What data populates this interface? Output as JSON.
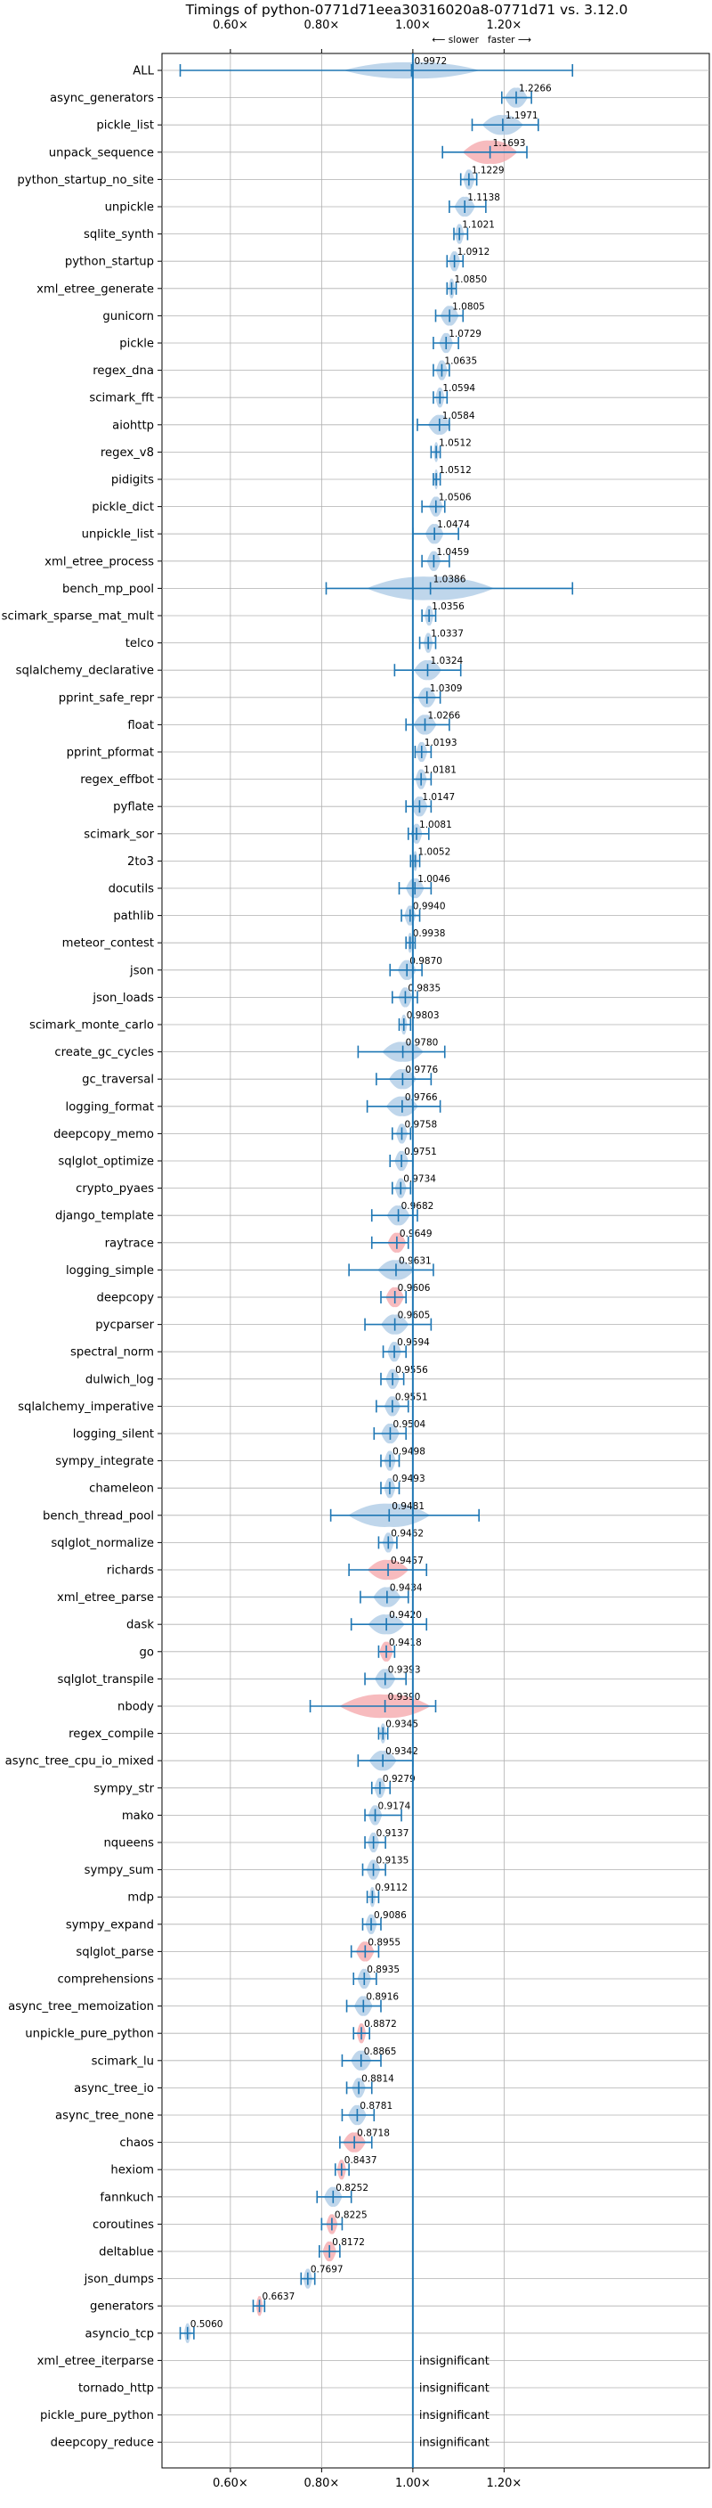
{
  "chart_data": {
    "type": "violin",
    "title": "Timings of python-0771d71eea30316020a8-0771d71 vs. 3.12.0",
    "xlim": [
      0.45,
      1.65
    ],
    "x_ticks": [
      {
        "value": 0.6,
        "label": "0.60×"
      },
      {
        "value": 0.8,
        "label": "0.80×"
      },
      {
        "value": 1.0,
        "label": "1.00×"
      },
      {
        "value": 1.2,
        "label": "1.20×"
      }
    ],
    "direction_labels": {
      "slower": "⟵ slower",
      "faster": "faster ⟶"
    },
    "grid": true,
    "colors": {
      "normal": "#a9c8e4",
      "warn": "#f4a4a8",
      "line": "#1f77b4"
    },
    "insignificant_label": "insignificant",
    "benchmarks": [
      {
        "name": "ALL",
        "value": 0.9972,
        "label": "0.9972",
        "lo": 0.49,
        "hi": 1.35,
        "kind": "all",
        "width": 0.3
      },
      {
        "name": "async_generators",
        "value": 1.2266,
        "label": "1.2266",
        "lo": 1.195,
        "hi": 1.26,
        "kind": "normal",
        "width": 0.05
      },
      {
        "name": "pickle_list",
        "value": 1.1971,
        "label": "1.1971",
        "lo": 1.13,
        "hi": 1.275,
        "kind": "normal",
        "width": 0.09
      },
      {
        "name": "unpack_sequence",
        "value": 1.1693,
        "label": "1.1693",
        "lo": 1.065,
        "hi": 1.25,
        "kind": "warn",
        "width": 0.12
      },
      {
        "name": "python_startup_no_site",
        "value": 1.1229,
        "label": "1.1229",
        "lo": 1.105,
        "hi": 1.14,
        "kind": "normal",
        "width": 0.025
      },
      {
        "name": "unpickle",
        "value": 1.1138,
        "label": "1.1138",
        "lo": 1.08,
        "hi": 1.16,
        "kind": "normal",
        "width": 0.045
      },
      {
        "name": "sqlite_synth",
        "value": 1.1021,
        "label": "1.1021",
        "lo": 1.09,
        "hi": 1.12,
        "kind": "normal",
        "width": 0.02
      },
      {
        "name": "python_startup",
        "value": 1.0912,
        "label": "1.0912",
        "lo": 1.075,
        "hi": 1.11,
        "kind": "normal",
        "width": 0.025
      },
      {
        "name": "xml_etree_generate",
        "value": 1.085,
        "label": "1.0850",
        "lo": 1.075,
        "hi": 1.095,
        "kind": "normal",
        "width": 0.015
      },
      {
        "name": "gunicorn",
        "value": 1.0805,
        "label": "1.0805",
        "lo": 1.05,
        "hi": 1.11,
        "kind": "normal",
        "width": 0.04
      },
      {
        "name": "pickle",
        "value": 1.0729,
        "label": "1.0729",
        "lo": 1.045,
        "hi": 1.1,
        "kind": "normal",
        "width": 0.03
      },
      {
        "name": "regex_dna",
        "value": 1.0635,
        "label": "1.0635",
        "lo": 1.045,
        "hi": 1.08,
        "kind": "normal",
        "width": 0.025
      },
      {
        "name": "scimark_fft",
        "value": 1.0594,
        "label": "1.0594",
        "lo": 1.045,
        "hi": 1.075,
        "kind": "normal",
        "width": 0.02
      },
      {
        "name": "aiohttp",
        "value": 1.0584,
        "label": "1.0584",
        "lo": 1.01,
        "hi": 1.08,
        "kind": "normal",
        "width": 0.05
      },
      {
        "name": "regex_v8",
        "value": 1.0512,
        "label": "1.0512",
        "lo": 1.04,
        "hi": 1.06,
        "kind": "normal",
        "width": 0.012
      },
      {
        "name": "pidigits",
        "value": 1.0512,
        "label": "1.0512",
        "lo": 1.045,
        "hi": 1.06,
        "kind": "normal",
        "width": 0.01
      },
      {
        "name": "pickle_dict",
        "value": 1.0506,
        "label": "1.0506",
        "lo": 1.02,
        "hi": 1.07,
        "kind": "normal",
        "width": 0.03
      },
      {
        "name": "unpickle_list",
        "value": 1.0474,
        "label": "1.0474",
        "lo": 1.0,
        "hi": 1.1,
        "kind": "normal",
        "width": 0.04
      },
      {
        "name": "xml_etree_process",
        "value": 1.0459,
        "label": "1.0459",
        "lo": 1.02,
        "hi": 1.08,
        "kind": "normal",
        "width": 0.03
      },
      {
        "name": "bench_mp_pool",
        "value": 1.0386,
        "label": "1.0386",
        "lo": 0.81,
        "hi": 1.35,
        "kind": "normal",
        "width": 0.28
      },
      {
        "name": "scimark_sparse_mat_mult",
        "value": 1.0356,
        "label": "1.0356",
        "lo": 1.02,
        "hi": 1.05,
        "kind": "normal",
        "width": 0.02
      },
      {
        "name": "telco",
        "value": 1.0337,
        "label": "1.0337",
        "lo": 1.015,
        "hi": 1.05,
        "kind": "normal",
        "width": 0.02
      },
      {
        "name": "sqlalchemy_declarative",
        "value": 1.0324,
        "label": "1.0324",
        "lo": 0.96,
        "hi": 1.105,
        "kind": "normal",
        "width": 0.06
      },
      {
        "name": "pprint_safe_repr",
        "value": 1.0309,
        "label": "1.0309",
        "lo": 1.0,
        "hi": 1.06,
        "kind": "normal",
        "width": 0.04
      },
      {
        "name": "float",
        "value": 1.0266,
        "label": "1.0266",
        "lo": 0.985,
        "hi": 1.08,
        "kind": "normal",
        "width": 0.05
      },
      {
        "name": "pprint_pformat",
        "value": 1.0193,
        "label": "1.0193",
        "lo": 1.005,
        "hi": 1.04,
        "kind": "normal",
        "width": 0.025
      },
      {
        "name": "regex_effbot",
        "value": 1.0181,
        "label": "1.0181",
        "lo": 1.0,
        "hi": 1.04,
        "kind": "normal",
        "width": 0.025
      },
      {
        "name": "pyflate",
        "value": 1.0147,
        "label": "1.0147",
        "lo": 0.985,
        "hi": 1.04,
        "kind": "normal",
        "width": 0.035
      },
      {
        "name": "scimark_sor",
        "value": 1.0081,
        "label": "1.0081",
        "lo": 0.99,
        "hi": 1.035,
        "kind": "normal",
        "width": 0.025
      },
      {
        "name": "2to3",
        "value": 1.0052,
        "label": "1.0052",
        "lo": 0.995,
        "hi": 1.015,
        "kind": "normal",
        "width": 0.012
      },
      {
        "name": "docutils",
        "value": 1.0046,
        "label": "1.0046",
        "lo": 0.97,
        "hi": 1.04,
        "kind": "normal",
        "width": 0.04
      },
      {
        "name": "pathlib",
        "value": 0.994,
        "label": "0.9940",
        "lo": 0.975,
        "hi": 1.015,
        "kind": "normal",
        "width": 0.025
      },
      {
        "name": "meteor_contest",
        "value": 0.9938,
        "label": "0.9938",
        "lo": 0.985,
        "hi": 1.005,
        "kind": "normal",
        "width": 0.012
      },
      {
        "name": "json",
        "value": 0.987,
        "label": "0.9870",
        "lo": 0.95,
        "hi": 1.02,
        "kind": "normal",
        "width": 0.04
      },
      {
        "name": "json_loads",
        "value": 0.9835,
        "label": "0.9835",
        "lo": 0.955,
        "hi": 1.01,
        "kind": "normal",
        "width": 0.03
      },
      {
        "name": "scimark_monte_carlo",
        "value": 0.9803,
        "label": "0.9803",
        "lo": 0.97,
        "hi": 0.995,
        "kind": "normal",
        "width": 0.015
      },
      {
        "name": "create_gc_cycles",
        "value": 0.978,
        "label": "0.9780",
        "lo": 0.88,
        "hi": 1.07,
        "kind": "normal",
        "width": 0.09
      },
      {
        "name": "gc_traversal",
        "value": 0.9776,
        "label": "0.9776",
        "lo": 0.92,
        "hi": 1.04,
        "kind": "normal",
        "width": 0.06
      },
      {
        "name": "logging_format",
        "value": 0.9766,
        "label": "0.9766",
        "lo": 0.9,
        "hi": 1.06,
        "kind": "normal",
        "width": 0.07
      },
      {
        "name": "deepcopy_memo",
        "value": 0.9758,
        "label": "0.9758",
        "lo": 0.955,
        "hi": 0.995,
        "kind": "normal",
        "width": 0.025
      },
      {
        "name": "sqlglot_optimize",
        "value": 0.9751,
        "label": "0.9751",
        "lo": 0.95,
        "hi": 1.0,
        "kind": "normal",
        "width": 0.03
      },
      {
        "name": "crypto_pyaes",
        "value": 0.9734,
        "label": "0.9734",
        "lo": 0.955,
        "hi": 0.995,
        "kind": "normal",
        "width": 0.025
      },
      {
        "name": "django_template",
        "value": 0.9682,
        "label": "0.9682",
        "lo": 0.91,
        "hi": 1.01,
        "kind": "normal",
        "width": 0.05
      },
      {
        "name": "raytrace",
        "value": 0.9649,
        "label": "0.9649",
        "lo": 0.91,
        "hi": 0.99,
        "kind": "warn",
        "width": 0.04
      },
      {
        "name": "logging_simple",
        "value": 0.9631,
        "label": "0.9631",
        "lo": 0.86,
        "hi": 1.045,
        "kind": "normal",
        "width": 0.08
      },
      {
        "name": "deepcopy",
        "value": 0.9606,
        "label": "0.9606",
        "lo": 0.93,
        "hi": 0.985,
        "kind": "warn",
        "width": 0.04
      },
      {
        "name": "pycparser",
        "value": 0.9605,
        "label": "0.9605",
        "lo": 0.895,
        "hi": 1.04,
        "kind": "normal",
        "width": 0.06
      },
      {
        "name": "spectral_norm",
        "value": 0.9594,
        "label": "0.9594",
        "lo": 0.935,
        "hi": 0.985,
        "kind": "normal",
        "width": 0.03
      },
      {
        "name": "dulwich_log",
        "value": 0.9556,
        "label": "0.9556",
        "lo": 0.93,
        "hi": 0.98,
        "kind": "normal",
        "width": 0.03
      },
      {
        "name": "sqlalchemy_imperative",
        "value": 0.9551,
        "label": "0.9551",
        "lo": 0.92,
        "hi": 0.99,
        "kind": "normal",
        "width": 0.035
      },
      {
        "name": "logging_silent",
        "value": 0.9504,
        "label": "0.9504",
        "lo": 0.915,
        "hi": 0.985,
        "kind": "normal",
        "width": 0.04
      },
      {
        "name": "sympy_integrate",
        "value": 0.9498,
        "label": "0.9498",
        "lo": 0.93,
        "hi": 0.97,
        "kind": "normal",
        "width": 0.025
      },
      {
        "name": "chameleon",
        "value": 0.9493,
        "label": "0.9493",
        "lo": 0.93,
        "hi": 0.97,
        "kind": "normal",
        "width": 0.025
      },
      {
        "name": "bench_thread_pool",
        "value": 0.9481,
        "label": "0.9481",
        "lo": 0.82,
        "hi": 1.145,
        "kind": "normal",
        "width": 0.18
      },
      {
        "name": "sqlglot_normalize",
        "value": 0.9462,
        "label": "0.9462",
        "lo": 0.925,
        "hi": 0.965,
        "kind": "normal",
        "width": 0.025
      },
      {
        "name": "richards",
        "value": 0.9457,
        "label": "0.9457",
        "lo": 0.86,
        "hi": 1.03,
        "kind": "warn",
        "width": 0.09
      },
      {
        "name": "xml_etree_parse",
        "value": 0.9434,
        "label": "0.9434",
        "lo": 0.885,
        "hi": 0.99,
        "kind": "normal",
        "width": 0.06
      },
      {
        "name": "dask",
        "value": 0.942,
        "label": "0.9420",
        "lo": 0.865,
        "hi": 1.03,
        "kind": "normal",
        "width": 0.08
      },
      {
        "name": "go",
        "value": 0.9418,
        "label": "0.9418",
        "lo": 0.925,
        "hi": 0.96,
        "kind": "warn",
        "width": 0.03
      },
      {
        "name": "sqlglot_transpile",
        "value": 0.9393,
        "label": "0.9393",
        "lo": 0.895,
        "hi": 0.985,
        "kind": "normal",
        "width": 0.045
      },
      {
        "name": "nbody",
        "value": 0.939,
        "label": "0.9390",
        "lo": 0.775,
        "hi": 1.05,
        "kind": "warn",
        "width": 0.2
      },
      {
        "name": "regex_compile",
        "value": 0.9345,
        "label": "0.9345",
        "lo": 0.925,
        "hi": 0.945,
        "kind": "normal",
        "width": 0.015
      },
      {
        "name": "async_tree_cpu_io_mixed",
        "value": 0.9342,
        "label": "0.9342",
        "lo": 0.88,
        "hi": 1.0,
        "kind": "normal",
        "width": 0.06
      },
      {
        "name": "sympy_str",
        "value": 0.9279,
        "label": "0.9279",
        "lo": 0.91,
        "hi": 0.95,
        "kind": "normal",
        "width": 0.025
      },
      {
        "name": "mako",
        "value": 0.9174,
        "label": "0.9174",
        "lo": 0.895,
        "hi": 0.975,
        "kind": "normal",
        "width": 0.03
      },
      {
        "name": "nqueens",
        "value": 0.9137,
        "label": "0.9137",
        "lo": 0.895,
        "hi": 0.94,
        "kind": "normal",
        "width": 0.025
      },
      {
        "name": "sympy_sum",
        "value": 0.9135,
        "label": "0.9135",
        "lo": 0.89,
        "hi": 0.94,
        "kind": "normal",
        "width": 0.03
      },
      {
        "name": "mdp",
        "value": 0.9112,
        "label": "0.9112",
        "lo": 0.9,
        "hi": 0.925,
        "kind": "normal",
        "width": 0.015
      },
      {
        "name": "sympy_expand",
        "value": 0.9086,
        "label": "0.9086",
        "lo": 0.89,
        "hi": 0.93,
        "kind": "normal",
        "width": 0.025
      },
      {
        "name": "sqlglot_parse",
        "value": 0.8955,
        "label": "0.8955",
        "lo": 0.865,
        "hi": 0.925,
        "kind": "warn",
        "width": 0.04
      },
      {
        "name": "comprehensions",
        "value": 0.8935,
        "label": "0.8935",
        "lo": 0.87,
        "hi": 0.92,
        "kind": "normal",
        "width": 0.03
      },
      {
        "name": "async_tree_memoization",
        "value": 0.8916,
        "label": "0.8916",
        "lo": 0.855,
        "hi": 0.93,
        "kind": "normal",
        "width": 0.04
      },
      {
        "name": "unpickle_pure_python",
        "value": 0.8872,
        "label": "0.8872",
        "lo": 0.87,
        "hi": 0.905,
        "kind": "warn",
        "width": 0.02
      },
      {
        "name": "scimark_lu",
        "value": 0.8865,
        "label": "0.8865",
        "lo": 0.845,
        "hi": 0.93,
        "kind": "normal",
        "width": 0.045
      },
      {
        "name": "async_tree_io",
        "value": 0.8814,
        "label": "0.8814",
        "lo": 0.855,
        "hi": 0.91,
        "kind": "normal",
        "width": 0.03
      },
      {
        "name": "async_tree_none",
        "value": 0.8781,
        "label": "0.8781",
        "lo": 0.845,
        "hi": 0.915,
        "kind": "normal",
        "width": 0.04
      },
      {
        "name": "chaos",
        "value": 0.8718,
        "label": "0.8718",
        "lo": 0.84,
        "hi": 0.91,
        "kind": "warn",
        "width": 0.05
      },
      {
        "name": "hexiom",
        "value": 0.8437,
        "label": "0.8437",
        "lo": 0.83,
        "hi": 0.86,
        "kind": "warn",
        "width": 0.02
      },
      {
        "name": "fannkuch",
        "value": 0.8252,
        "label": "0.8252",
        "lo": 0.79,
        "hi": 0.865,
        "kind": "normal",
        "width": 0.04
      },
      {
        "name": "coroutines",
        "value": 0.8225,
        "label": "0.8225",
        "lo": 0.8,
        "hi": 0.845,
        "kind": "warn",
        "width": 0.025
      },
      {
        "name": "deltablue",
        "value": 0.8172,
        "label": "0.8172",
        "lo": 0.795,
        "hi": 0.84,
        "kind": "warn",
        "width": 0.03
      },
      {
        "name": "json_dumps",
        "value": 0.7697,
        "label": "0.7697",
        "lo": 0.755,
        "hi": 0.785,
        "kind": "normal",
        "width": 0.02
      },
      {
        "name": "generators",
        "value": 0.6637,
        "label": "0.6637",
        "lo": 0.65,
        "hi": 0.675,
        "kind": "warn",
        "width": 0.015
      },
      {
        "name": "asyncio_tcp",
        "value": 0.506,
        "label": "0.5060",
        "lo": 0.49,
        "hi": 0.52,
        "kind": "normal",
        "width": 0.015
      },
      {
        "name": "xml_etree_iterparse",
        "value": null,
        "label": "",
        "kind": "insignificant"
      },
      {
        "name": "tornado_http",
        "value": null,
        "label": "",
        "kind": "insignificant"
      },
      {
        "name": "pickle_pure_python",
        "value": null,
        "label": "",
        "kind": "insignificant"
      },
      {
        "name": "deepcopy_reduce",
        "value": null,
        "label": "",
        "kind": "insignificant"
      }
    ]
  }
}
